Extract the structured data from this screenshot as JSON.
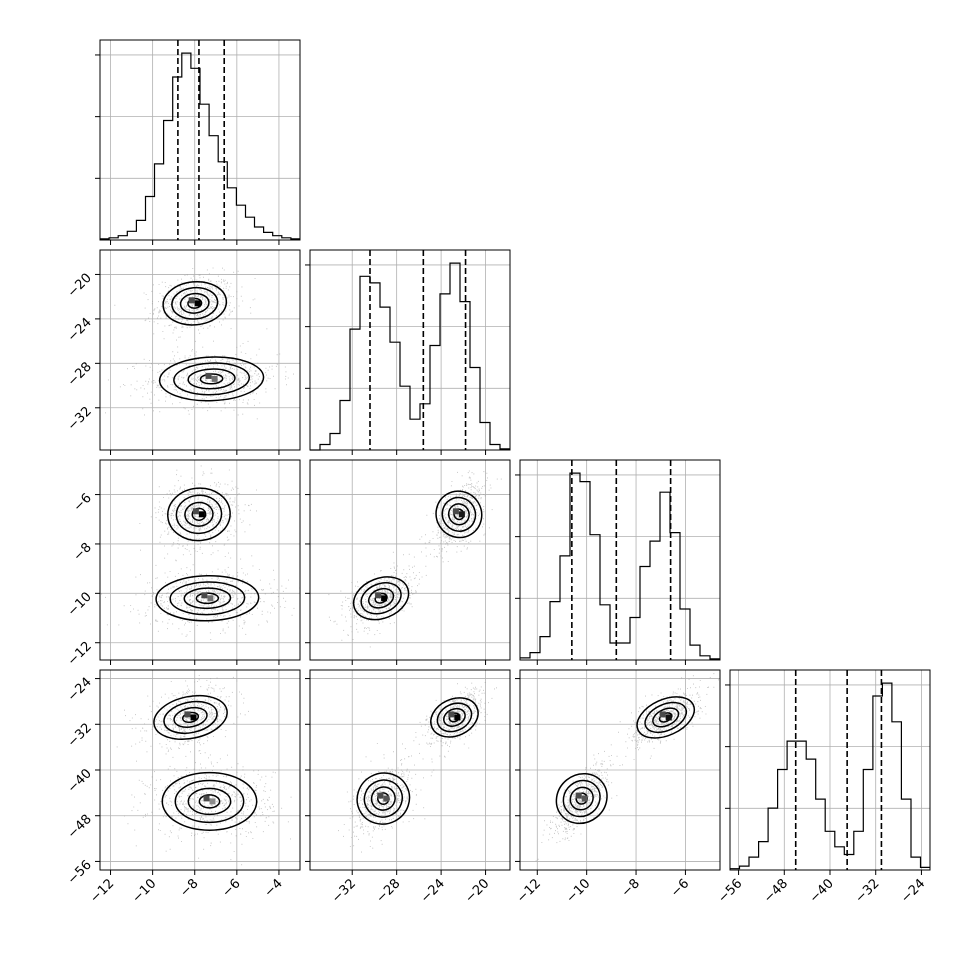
{
  "chart_data": {
    "type": "corner",
    "parameters": [
      {
        "range": [
          -12.5,
          -3.0
        ],
        "ticks": [
          -12,
          -10,
          -8,
          -6,
          -4
        ],
        "tick_labels": [
          "−12",
          "−10",
          "−8",
          "−6",
          "−4"
        ]
      },
      {
        "range": [
          -35.8,
          -17.8
        ],
        "ticks": [
          -32,
          -28,
          -24,
          -20
        ],
        "tick_labels": [
          "−32",
          "−28",
          "−24",
          "−20"
        ]
      },
      {
        "range": [
          -12.7,
          -4.6
        ],
        "ticks": [
          -12,
          -10,
          -8,
          -6
        ],
        "tick_labels": [
          "−12",
          "−10",
          "−8",
          "−6"
        ]
      },
      {
        "range": [
          -57.5,
          -22.5
        ],
        "ticks": [
          -56,
          -48,
          -40,
          -32,
          -24
        ],
        "tick_labels": [
          "−56",
          "−48",
          "−40",
          "−32",
          "−24"
        ]
      }
    ],
    "quantiles": [
      [
        -8.8,
        -7.8,
        -6.6
      ],
      [
        -30.4,
        -25.6,
        -21.8
      ],
      [
        -10.6,
        -8.8,
        -6.6
      ],
      [
        -46.0,
        -37.0,
        -31.0
      ]
    ],
    "histograms": [
      {
        "edges_range": [
          -12.5,
          -3.0
        ],
        "counts": [
          1,
          2,
          4,
          8,
          18,
          40,
          70,
          110,
          150,
          172,
          158,
          125,
          96,
          72,
          48,
          32,
          21,
          12,
          7,
          4,
          2,
          1
        ]
      },
      {
        "edges_range": [
          -35.8,
          -17.8
        ],
        "counts": [
          0,
          5,
          15,
          45,
          110,
          158,
          152,
          130,
          98,
          58,
          28,
          42,
          95,
          142,
          170,
          135,
          75,
          25,
          5,
          1
        ]
      },
      {
        "edges_range": [
          -12.7,
          -4.6
        ],
        "counts": [
          2,
          7,
          22,
          55,
          98,
          176,
          168,
          118,
          52,
          16,
          16,
          40,
          88,
          112,
          158,
          120,
          48,
          14,
          4,
          1
        ]
      },
      {
        "edges_range": [
          -57.5,
          -22.5
        ],
        "counts": [
          1,
          3,
          10,
          22,
          48,
          78,
          100,
          100,
          86,
          55,
          30,
          18,
          12,
          30,
          78,
          135,
          145,
          115,
          55,
          10,
          2
        ]
      }
    ],
    "pairs": [
      {
        "x": 0,
        "y": 1,
        "components": [
          {
            "cx": -8.0,
            "cy": -22.6,
            "sx": 0.9,
            "sy": 1.2,
            "rho": 0.15,
            "peak": "#000000"
          },
          {
            "cx": -7.2,
            "cy": -29.4,
            "sx": 1.5,
            "sy": 1.2,
            "rho": 0.1,
            "peak": "#707070"
          }
        ]
      },
      {
        "x": 0,
        "y": 2,
        "components": [
          {
            "cx": -7.8,
            "cy": -6.8,
            "sx": 0.9,
            "sy": 0.65,
            "rho": 0.1,
            "peak": "#000000"
          },
          {
            "cx": -7.4,
            "cy": -10.2,
            "sx": 1.5,
            "sy": 0.55,
            "rho": 0.05,
            "peak": "#707070"
          }
        ]
      },
      {
        "x": 0,
        "y": 3,
        "components": [
          {
            "cx": -8.2,
            "cy": -30.8,
            "sx": 1.0,
            "sy": 2.4,
            "rho": 0.35,
            "peak": "#000000"
          },
          {
            "cx": -7.3,
            "cy": -45.5,
            "sx": 1.4,
            "sy": 3.0,
            "rho": 0.0,
            "peak": "#8a8a8a"
          }
        ]
      },
      {
        "x": 1,
        "y": 2,
        "components": [
          {
            "cx": -22.4,
            "cy": -6.8,
            "sx": 1.1,
            "sy": 0.65,
            "rho": 0.55,
            "peak": "#1a1a1a"
          },
          {
            "cx": -29.4,
            "cy": -10.2,
            "sx": 1.4,
            "sy": 0.55,
            "rho": 0.5,
            "peak": "#000000"
          }
        ]
      },
      {
        "x": 1,
        "y": 3,
        "components": [
          {
            "cx": -22.8,
            "cy": -30.8,
            "sx": 1.2,
            "sy": 2.2,
            "rho": 0.55,
            "peak": "#000000"
          },
          {
            "cx": -29.2,
            "cy": -45.0,
            "sx": 1.3,
            "sy": 3.0,
            "rho": 0.5,
            "peak": "#555555"
          }
        ]
      },
      {
        "x": 2,
        "y": 3,
        "components": [
          {
            "cx": -6.8,
            "cy": -30.8,
            "sx": 0.65,
            "sy": 2.2,
            "rho": 0.65,
            "peak": "#111111"
          },
          {
            "cx": -10.2,
            "cy": -45.0,
            "sx": 0.55,
            "sy": 3.0,
            "rho": 0.75,
            "peak": "#555555"
          }
        ]
      }
    ],
    "grid": true,
    "colors": {
      "line": "#000000",
      "grid": "#b0b0b0",
      "scatter": "#9a9a9a"
    }
  }
}
